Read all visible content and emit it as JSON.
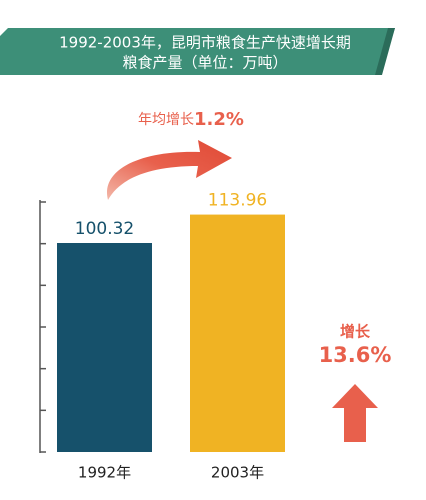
{
  "chart_data": {
    "type": "bar",
    "title": "1992-2003年，昆明市粮食生产快速增长期",
    "subtitle": "粮食产量（单位：万吨）",
    "categories": [
      "1992年",
      "2003年"
    ],
    "values": [
      100.32,
      113.96
    ],
    "colors": [
      "#16516b",
      "#f0b323"
    ],
    "ylim": [
      0,
      120
    ],
    "yticks": [
      0,
      20,
      40,
      60,
      80,
      100,
      120
    ],
    "annotations": {
      "avg_label": "年均增长",
      "avg_value": "1.2%",
      "total_label": "增长",
      "total_value": "13.6%"
    }
  }
}
